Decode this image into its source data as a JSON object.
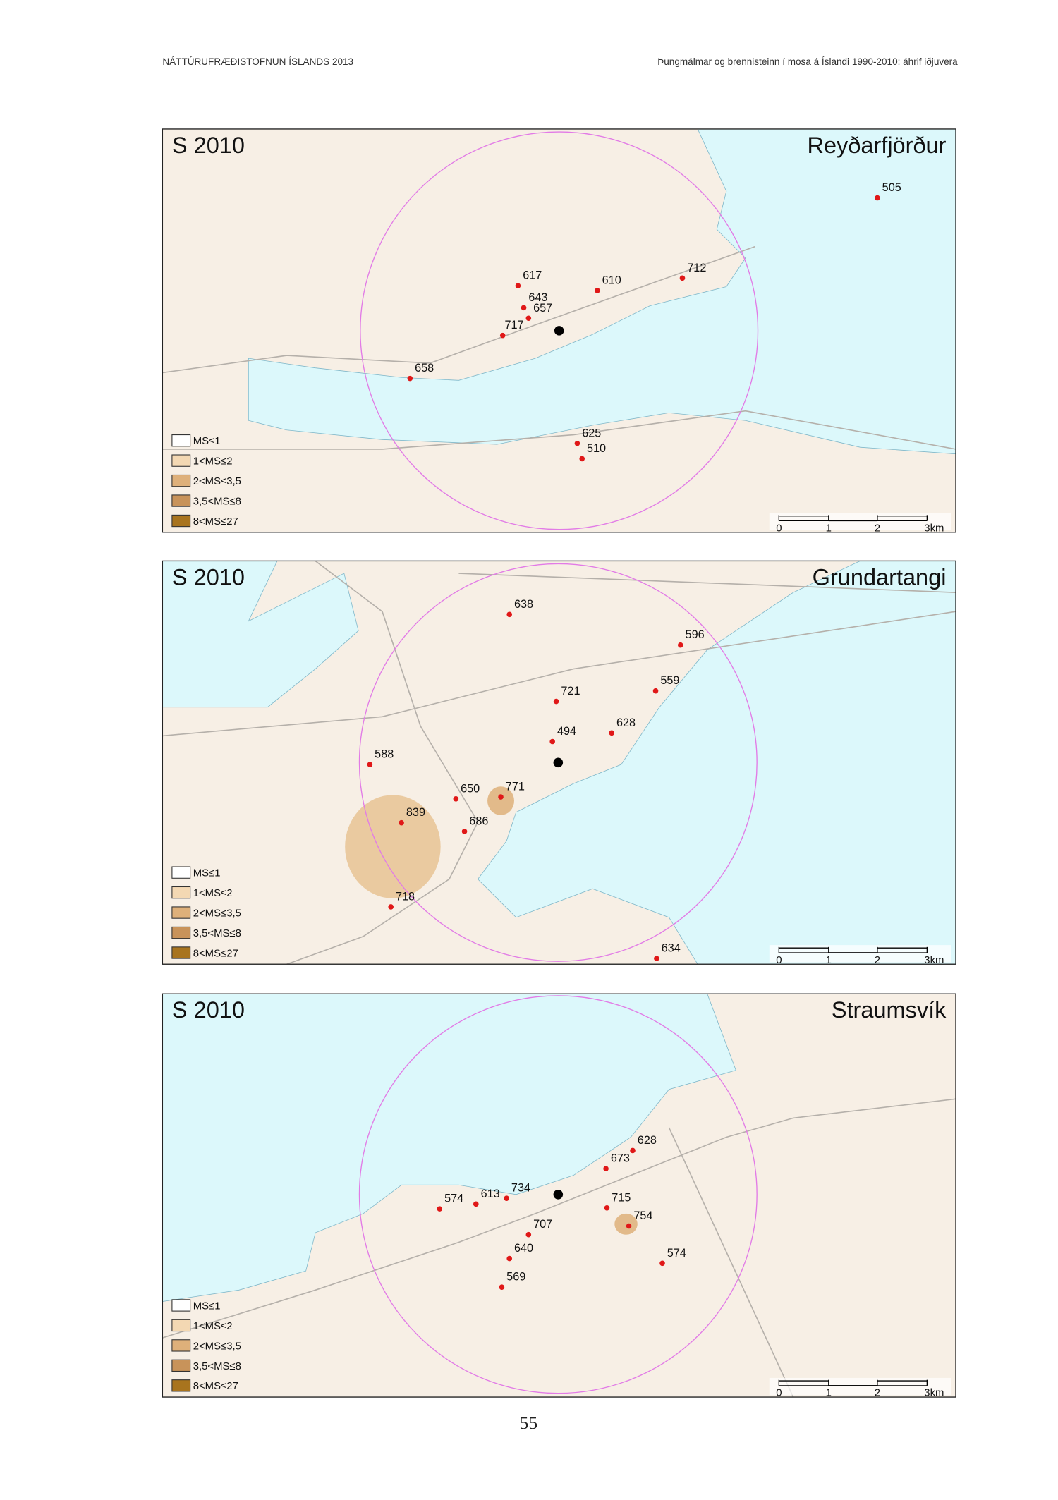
{
  "header": {
    "left": "NÁTTÚRUFRÆÐISTOFNUN ÍSLANDS 2013",
    "right": "Þungmálmar og brennisteinn í mosa á Íslandi 1990-2010: áhrif iðjuvera"
  },
  "maps": [
    {
      "title": "S 2010",
      "place": "Reyðarfjörður",
      "points": [
        505,
        617,
        610,
        712,
        643,
        657,
        717,
        658,
        625,
        510
      ]
    },
    {
      "title": "S 2010",
      "place": "Grundartangi",
      "points": [
        638,
        596,
        559,
        721,
        494,
        628,
        588,
        650,
        771,
        839,
        686,
        718,
        634
      ]
    },
    {
      "title": "S 2010",
      "place": "Straumsvík",
      "points": [
        628,
        673,
        734,
        613,
        574,
        715,
        754,
        707,
        640,
        574,
        569
      ]
    }
  ],
  "legend": [
    "MS≤1",
    "1<MS≤2",
    "2<MS≤3,5",
    "3,5<MS≤8",
    "8<MS≤27"
  ],
  "scale": [
    "0",
    "1",
    "2",
    "3km"
  ],
  "page_number": "55"
}
